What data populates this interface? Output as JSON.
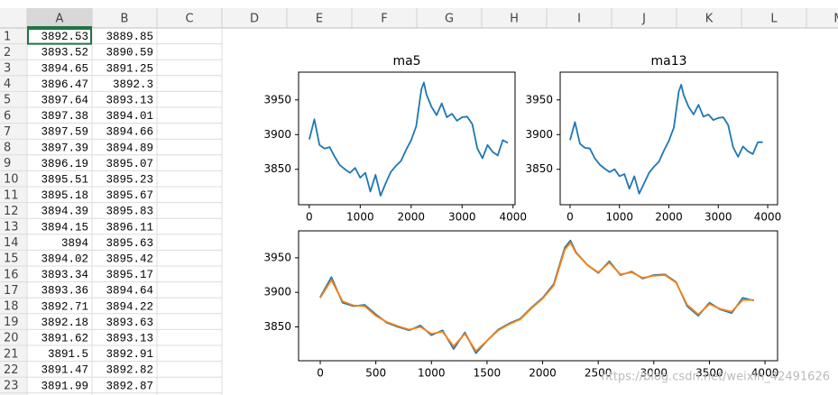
{
  "spreadsheet": {
    "columns": [
      "A",
      "B",
      "C",
      "D",
      "E",
      "F",
      "G",
      "H",
      "I",
      "J",
      "K",
      "L",
      "M"
    ],
    "row_numbers": [
      1,
      2,
      3,
      4,
      5,
      6,
      7,
      8,
      9,
      10,
      11,
      12,
      13,
      14,
      15,
      16,
      17,
      18,
      19,
      20,
      21,
      22,
      23
    ],
    "cells": [
      [
        3892.53,
        3889.85
      ],
      [
        3893.52,
        3890.59
      ],
      [
        3894.65,
        3891.25
      ],
      [
        3896.47,
        3892.3
      ],
      [
        3897.64,
        3893.13
      ],
      [
        3897.38,
        3894.01
      ],
      [
        3897.59,
        3894.66
      ],
      [
        3897.39,
        3894.89
      ],
      [
        3896.19,
        3895.07
      ],
      [
        3895.51,
        3895.23
      ],
      [
        3895.18,
        3895.67
      ],
      [
        3894.39,
        3895.83
      ],
      [
        3894.15,
        3896.11
      ],
      [
        3894,
        3895.63
      ],
      [
        3894.02,
        3895.42
      ],
      [
        3893.34,
        3895.17
      ],
      [
        3893.36,
        3894.64
      ],
      [
        3892.71,
        3894.22
      ],
      [
        3892.18,
        3893.63
      ],
      [
        3891.62,
        3893.13
      ],
      [
        3891.5,
        3892.91
      ],
      [
        3891.47,
        3892.82
      ],
      [
        3891.99,
        3892.87
      ]
    ]
  },
  "watermark": "https://blog.csdn.net/weixin_42491626",
  "chart_data": [
    {
      "type": "line",
      "title": "ma5",
      "x": [
        0,
        100,
        200,
        300,
        400,
        500,
        600,
        700,
        800,
        900,
        1000,
        1100,
        1200,
        1300,
        1400,
        1500,
        1600,
        1700,
        1800,
        1900,
        2000,
        2100,
        2200,
        2250,
        2300,
        2400,
        2500,
        2600,
        2700,
        2800,
        2900,
        3000,
        3100,
        3200,
        3300,
        3400,
        3500,
        3600,
        3700,
        3800,
        3900
      ],
      "series": [
        {
          "color": "#1f77b4",
          "values": [
            3893,
            3922,
            3885,
            3880,
            3882,
            3868,
            3856,
            3850,
            3845,
            3852,
            3838,
            3845,
            3818,
            3842,
            3812,
            3830,
            3846,
            3855,
            3862,
            3878,
            3892,
            3912,
            3965,
            3975,
            3958,
            3940,
            3928,
            3945,
            3925,
            3930,
            3920,
            3925,
            3926,
            3915,
            3880,
            3866,
            3885,
            3875,
            3870,
            3892,
            3888
          ]
        }
      ],
      "xlim": [
        -210,
        4040
      ],
      "ylim": [
        3799,
        3990
      ],
      "xticks": [
        0,
        1000,
        2000,
        3000,
        4000
      ],
      "yticks": [
        3850,
        3900,
        3950
      ]
    },
    {
      "type": "line",
      "title": "ma13",
      "x": [
        0,
        100,
        200,
        300,
        400,
        500,
        600,
        700,
        800,
        900,
        1000,
        1100,
        1200,
        1300,
        1400,
        1500,
        1600,
        1700,
        1800,
        1900,
        2000,
        2100,
        2200,
        2250,
        2300,
        2400,
        2500,
        2600,
        2700,
        2800,
        2900,
        3000,
        3100,
        3200,
        3300,
        3400,
        3500,
        3600,
        3700,
        3800,
        3900
      ],
      "series": [
        {
          "color": "#1f77b4",
          "values": [
            3892,
            3918,
            3887,
            3881,
            3880,
            3866,
            3857,
            3851,
            3846,
            3850,
            3840,
            3843,
            3822,
            3840,
            3815,
            3830,
            3845,
            3854,
            3861,
            3877,
            3891,
            3910,
            3962,
            3972,
            3957,
            3940,
            3929,
            3943,
            3926,
            3929,
            3921,
            3924,
            3925,
            3914,
            3882,
            3868,
            3883,
            3876,
            3872,
            3889,
            3889
          ]
        }
      ],
      "xlim": [
        -200,
        4200
      ],
      "ylim": [
        3799,
        3990
      ],
      "xticks": [
        0,
        1000,
        2000,
        3000,
        4000
      ],
      "yticks": [
        3850,
        3900,
        3950
      ]
    },
    {
      "type": "line",
      "x": [
        0,
        100,
        200,
        300,
        400,
        500,
        600,
        700,
        800,
        900,
        1000,
        1100,
        1200,
        1300,
        1400,
        1500,
        1600,
        1700,
        1800,
        1900,
        2000,
        2100,
        2200,
        2250,
        2300,
        2400,
        2500,
        2600,
        2700,
        2800,
        2900,
        3000,
        3100,
        3200,
        3300,
        3400,
        3500,
        3600,
        3700,
        3800,
        3900
      ],
      "series": [
        {
          "color": "#1f77b4",
          "values": [
            3893,
            3922,
            3885,
            3880,
            3882,
            3868,
            3856,
            3850,
            3845,
            3852,
            3838,
            3845,
            3818,
            3842,
            3812,
            3830,
            3846,
            3855,
            3862,
            3878,
            3892,
            3912,
            3965,
            3975,
            3958,
            3940,
            3928,
            3945,
            3925,
            3930,
            3920,
            3925,
            3926,
            3915,
            3880,
            3866,
            3885,
            3875,
            3870,
            3892,
            3888
          ]
        },
        {
          "color": "#ff7f0e",
          "values": [
            3892,
            3918,
            3887,
            3881,
            3880,
            3866,
            3857,
            3851,
            3846,
            3850,
            3840,
            3843,
            3822,
            3840,
            3815,
            3830,
            3845,
            3854,
            3861,
            3877,
            3891,
            3910,
            3962,
            3972,
            3957,
            3940,
            3929,
            3943,
            3926,
            3929,
            3921,
            3924,
            3925,
            3914,
            3882,
            3868,
            3883,
            3876,
            3872,
            3889,
            3889
          ]
        }
      ],
      "xlim": [
        -195,
        4113
      ],
      "ylim": [
        3801,
        3989
      ],
      "xticks": [
        0,
        500,
        1000,
        1500,
        2000,
        2500,
        3000,
        3500,
        4000
      ],
      "yticks": [
        3850,
        3900,
        3950
      ]
    }
  ]
}
